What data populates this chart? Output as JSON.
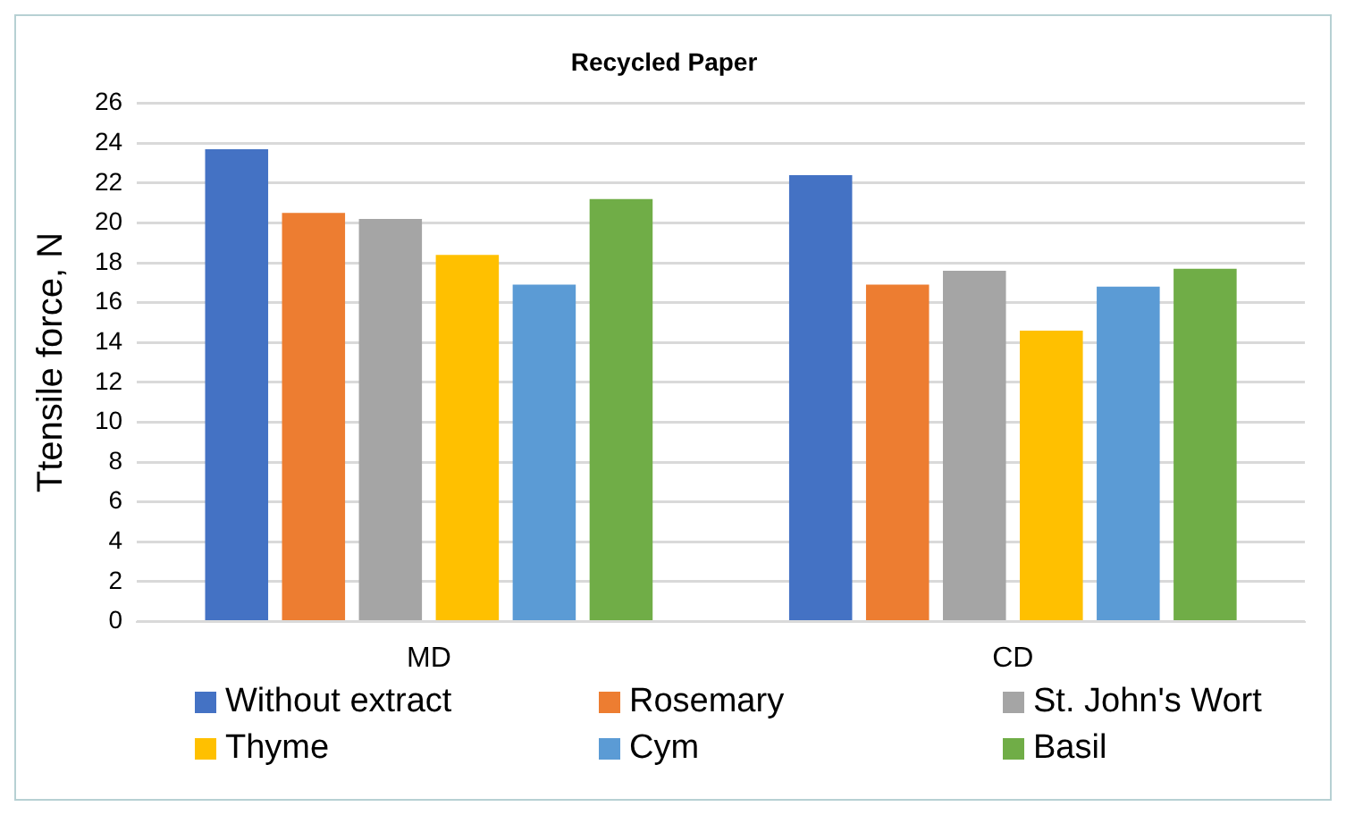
{
  "chart_data": {
    "type": "bar",
    "title": "Recycled Paper",
    "ylabel": "Ttensile force, N",
    "categories": [
      "MD",
      "CD"
    ],
    "series": [
      {
        "name": "Without extract",
        "color": "#4472c4",
        "values": [
          23.7,
          22.4
        ]
      },
      {
        "name": "Rosemary",
        "color": "#ed7d31",
        "values": [
          20.5,
          16.9
        ]
      },
      {
        "name": "St. John's Wort",
        "color": "#a5a5a5",
        "values": [
          20.2,
          17.6
        ]
      },
      {
        "name": "Thyme",
        "color": "#ffc000",
        "values": [
          18.4,
          14.6
        ]
      },
      {
        "name": "Cym",
        "color": "#5b9bd5",
        "values": [
          16.9,
          16.8
        ]
      },
      {
        "name": "Basil",
        "color": "#70ad47",
        "values": [
          21.2,
          17.7
        ]
      }
    ],
    "ylim": [
      0,
      26
    ],
    "yticks": [
      0,
      2,
      4,
      6,
      8,
      10,
      12,
      14,
      16,
      18,
      20,
      22,
      24,
      26
    ],
    "grid": "y",
    "legend": "bottom"
  }
}
